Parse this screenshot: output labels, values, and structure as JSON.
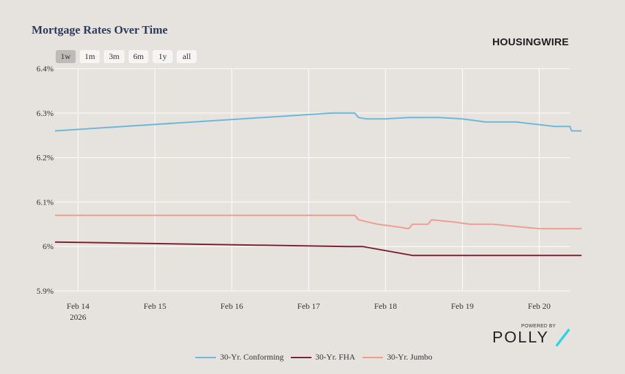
{
  "header": {
    "title": "Mortgage Rates Over Time",
    "brand": "HOUSINGWIRE"
  },
  "range_buttons": [
    "1w",
    "1m",
    "3m",
    "6m",
    "1y",
    "all"
  ],
  "active_range": "1w",
  "footer": {
    "powered_by": "POWERED BY",
    "polly": "POLLY",
    "slash_color": "#2fd3e6"
  },
  "chart_data": {
    "type": "line",
    "title": "Mortgage Rates Over Time",
    "xlabel": "",
    "ylabel": "",
    "xlim": [
      0,
      6.7
    ],
    "ylim": [
      5.9,
      6.4
    ],
    "yticks": [
      5.9,
      6.0,
      6.1,
      6.2,
      6.3,
      6.4
    ],
    "ytick_labels": [
      "5.9%",
      "6%",
      "6.1%",
      "6.2%",
      "6.3%",
      "6.4%"
    ],
    "xticks": [
      0.3,
      1.3,
      2.3,
      3.3,
      4.3,
      5.3,
      6.3
    ],
    "xtick_labels": [
      "Feb 14",
      "Feb 15",
      "Feb 16",
      "Feb 17",
      "Feb 18",
      "Feb 19",
      "Feb 20"
    ],
    "xtick_sublabel": "2026",
    "grid": true,
    "legend_position": "bottom",
    "series": [
      {
        "name": "30-Yr. Conforming",
        "color": "#6bb6dd",
        "points": [
          [
            0,
            6.26
          ],
          [
            3.6,
            6.3
          ],
          [
            3.9,
            6.3
          ],
          [
            3.95,
            6.29
          ],
          [
            4.05,
            6.287
          ],
          [
            4.3,
            6.287
          ],
          [
            4.6,
            6.29
          ],
          [
            5.0,
            6.29
          ],
          [
            5.3,
            6.287
          ],
          [
            5.6,
            6.28
          ],
          [
            6.0,
            6.28
          ],
          [
            6.3,
            6.274
          ],
          [
            6.5,
            6.27
          ],
          [
            6.7,
            6.27
          ],
          [
            6.72,
            6.26
          ],
          [
            6.85,
            6.26
          ]
        ]
      },
      {
        "name": "30-Yr. FHA",
        "color": "#7a1c2c",
        "points": [
          [
            0,
            6.01
          ],
          [
            3.8,
            6.0
          ],
          [
            4.0,
            6.0
          ],
          [
            4.65,
            5.98
          ],
          [
            6.85,
            5.98
          ]
        ]
      },
      {
        "name": "30-Yr. Jumbo",
        "color": "#f29a8f",
        "points": [
          [
            0,
            6.07
          ],
          [
            3.9,
            6.07
          ],
          [
            3.95,
            6.06
          ],
          [
            4.2,
            6.05
          ],
          [
            4.5,
            6.043
          ],
          [
            4.6,
            6.04
          ],
          [
            4.65,
            6.05
          ],
          [
            4.85,
            6.05
          ],
          [
            4.9,
            6.06
          ],
          [
            5.2,
            6.055
          ],
          [
            5.4,
            6.05
          ],
          [
            5.7,
            6.05
          ],
          [
            6.0,
            6.045
          ],
          [
            6.3,
            6.04
          ],
          [
            6.85,
            6.04
          ]
        ]
      }
    ]
  }
}
